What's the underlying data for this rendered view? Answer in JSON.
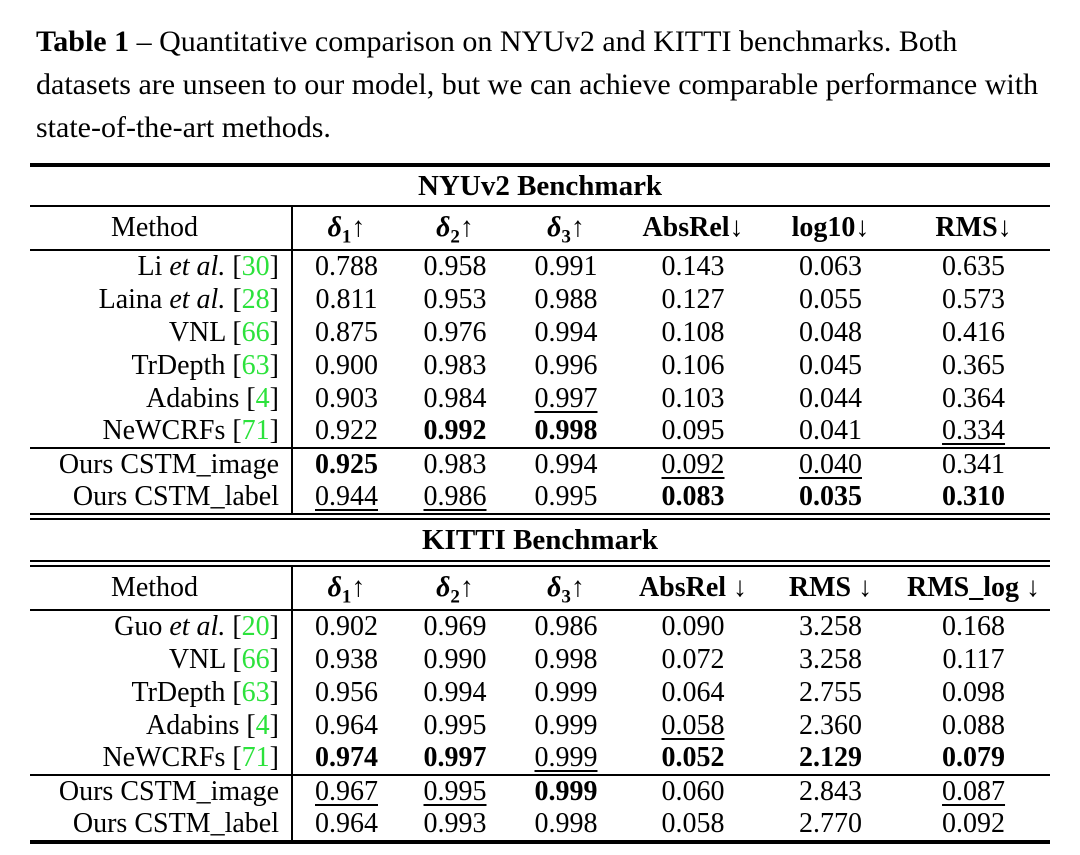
{
  "caption": {
    "label": "Table 1",
    "body": " – Quantitative comparison on NYUv2 and KITTI benchmarks. Both datasets are unseen to our model, but we can achieve comparable performance with state-of-the-art methods."
  },
  "colors": {
    "citation": "#2ce23c",
    "text": "#000000",
    "background": "#ffffff"
  },
  "nyu": {
    "title": "NYUv2 Benchmark",
    "headers": {
      "method": "Method",
      "d1": {
        "sym": "δ",
        "sub": "1",
        "arrow": "↑"
      },
      "d2": {
        "sym": "δ",
        "sub": "2",
        "arrow": "↑"
      },
      "d3": {
        "sym": "δ",
        "sub": "3",
        "arrow": "↑"
      },
      "m1": "AbsRel↓",
      "m2": "log10↓",
      "m3": "RMS↓"
    },
    "rows": [
      {
        "m": {
          "pre": "Li ",
          "it": "et al.",
          "mid": " ",
          "open": "[",
          "num": "30",
          "close": "]"
        },
        "v": [
          "0.788",
          "0.958",
          "0.991",
          "0.143",
          "0.063",
          "0.635"
        ]
      },
      {
        "m": {
          "pre": "Laina ",
          "it": "et al.",
          "mid": " ",
          "open": "[",
          "num": "28",
          "close": "]"
        },
        "v": [
          "0.811",
          "0.953",
          "0.988",
          "0.127",
          "0.055",
          "0.573"
        ]
      },
      {
        "m": {
          "pre": "VNL",
          "it": "",
          "mid": " ",
          "open": "[",
          "num": "66",
          "close": "]"
        },
        "v": [
          "0.875",
          "0.976",
          "0.994",
          "0.108",
          "0.048",
          "0.416"
        ]
      },
      {
        "m": {
          "pre": "TrDepth",
          "it": "",
          "mid": " ",
          "open": "[",
          "num": "63",
          "close": "]"
        },
        "v": [
          "0.900",
          "0.983",
          "0.996",
          "0.106",
          "0.045",
          "0.365"
        ]
      },
      {
        "m": {
          "pre": "Adabins",
          "it": "",
          "mid": " ",
          "open": "[",
          "num": "4",
          "close": "]"
        },
        "v": [
          "0.903",
          "0.984",
          "0.997",
          "0.103",
          "0.044",
          "0.364"
        ]
      },
      {
        "m": {
          "pre": "NeWCRFs",
          "it": "",
          "mid": " ",
          "open": "[",
          "num": "71",
          "close": "]"
        },
        "v": [
          "0.922",
          "0.992",
          "0.998",
          "0.095",
          "0.041",
          "0.334"
        ]
      },
      {
        "m": {
          "pre": "Ours CSTM_image",
          "it": "",
          "mid": "",
          "open": "",
          "num": "",
          "close": ""
        },
        "v": [
          "0.925",
          "0.983",
          "0.994",
          "0.092",
          "0.040",
          "0.341"
        ]
      },
      {
        "m": {
          "pre": "Ours CSTM_label",
          "it": "",
          "mid": "",
          "open": "",
          "num": "",
          "close": ""
        },
        "v": [
          "0.944",
          "0.986",
          "0.995",
          "0.083",
          "0.035",
          "0.310"
        ]
      }
    ]
  },
  "kitti": {
    "title": "KITTI Benchmark",
    "headers": {
      "method": "Method",
      "d1": {
        "sym": "δ",
        "sub": "1",
        "arrow": "↑"
      },
      "d2": {
        "sym": "δ",
        "sub": "2",
        "arrow": "↑"
      },
      "d3": {
        "sym": "δ",
        "sub": "3",
        "arrow": "↑"
      },
      "m1": "AbsRel ↓",
      "m2": "RMS ↓",
      "m3": "RMS_log ↓"
    },
    "rows": [
      {
        "m": {
          "pre": "Guo ",
          "it": "et al.",
          "mid": " ",
          "open": "[",
          "num": "20",
          "close": "]"
        },
        "v": [
          "0.902",
          "0.969",
          "0.986",
          "0.090",
          "3.258",
          "0.168"
        ]
      },
      {
        "m": {
          "pre": "VNL",
          "it": "",
          "mid": " ",
          "open": "[",
          "num": "66",
          "close": "]"
        },
        "v": [
          "0.938",
          "0.990",
          "0.998",
          "0.072",
          "3.258",
          "0.117"
        ]
      },
      {
        "m": {
          "pre": "TrDepth",
          "it": "",
          "mid": " ",
          "open": "[",
          "num": "63",
          "close": "]"
        },
        "v": [
          "0.956",
          "0.994",
          "0.999",
          "0.064",
          "2.755",
          "0.098"
        ]
      },
      {
        "m": {
          "pre": "Adabins",
          "it": "",
          "mid": " ",
          "open": "[",
          "num": "4",
          "close": "]"
        },
        "v": [
          "0.964",
          "0.995",
          "0.999",
          "0.058",
          "2.360",
          "0.088"
        ]
      },
      {
        "m": {
          "pre": "NeWCRFs",
          "it": "",
          "mid": " ",
          "open": "[",
          "num": "71",
          "close": "]"
        },
        "v": [
          "0.974",
          "0.997",
          "0.999",
          "0.052",
          "2.129",
          "0.079"
        ]
      },
      {
        "m": {
          "pre": "Ours CSTM_image",
          "it": "",
          "mid": "",
          "open": "",
          "num": "",
          "close": ""
        },
        "v": [
          "0.967",
          "0.995",
          "0.999",
          "0.060",
          "2.843",
          "0.087"
        ]
      },
      {
        "m": {
          "pre": "Ours CSTM_label",
          "it": "",
          "mid": "",
          "open": "",
          "num": "",
          "close": ""
        },
        "v": [
          "0.964",
          "0.993",
          "0.998",
          "0.058",
          "2.770",
          "0.092"
        ]
      }
    ]
  }
}
